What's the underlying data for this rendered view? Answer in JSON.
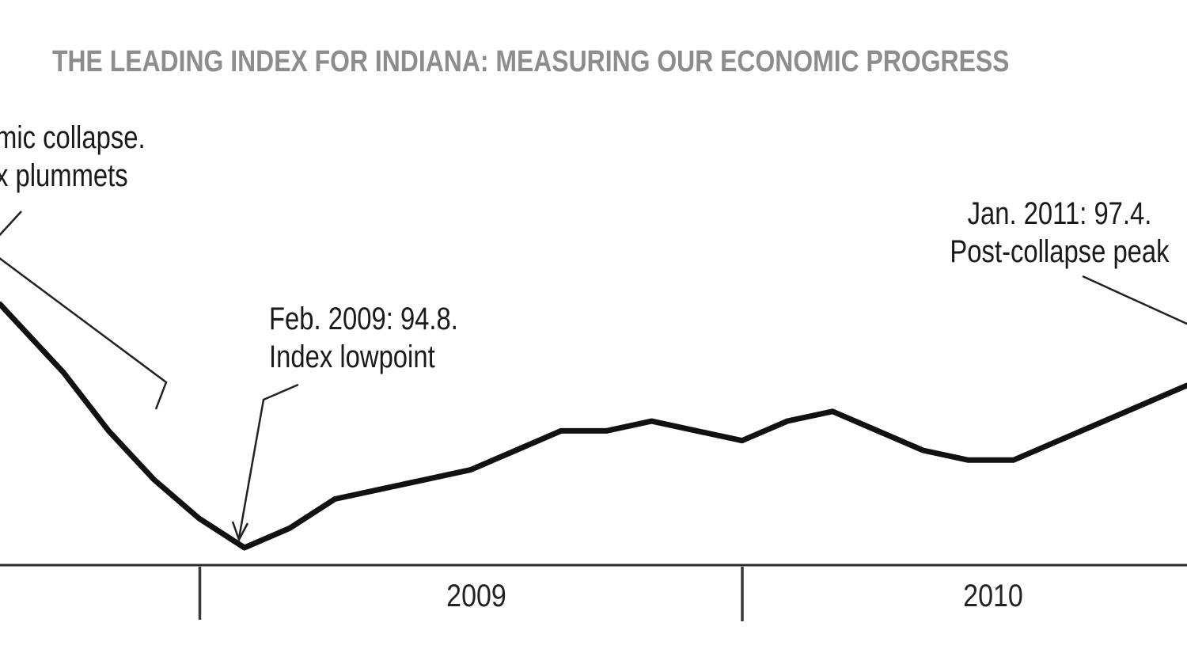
{
  "title": "THE LEADING INDEX FOR INDIANA: MEASURING OUR ECONOMIC PROGRESS",
  "annotations": {
    "collapse": {
      "line1": "mic collapse.",
      "line2": "x plummets"
    },
    "lowpoint": {
      "line1": "Feb. 2009: 94.8.",
      "line2": "Index lowpoint"
    },
    "peak": {
      "line1": "Jan. 2011: 97.4.",
      "line2": "Post-collapse peak"
    }
  },
  "axis": {
    "year_labels": [
      "2009",
      "2010"
    ]
  },
  "colors": {
    "background": "#ffffff",
    "index_line": "#111111",
    "leader_line": "#222222",
    "axis_line": "#2b2b2b",
    "tick": "#3a3a3a",
    "title_text": "#8d8d8d",
    "annotation_text": "#1a1a1a"
  },
  "chart_data": {
    "type": "line",
    "title": "THE LEADING INDEX FOR INDIANA: MEASURING OUR ECONOMIC PROGRESS",
    "x": [
      "Sep 2008",
      "Oct 2008",
      "Nov 2008",
      "Dec 2008",
      "Jan 2009",
      "Feb 2009",
      "Mar 2009",
      "Apr 2009",
      "May 2009",
      "Jun 2009",
      "Jul 2009",
      "Aug 2009",
      "Sep 2009",
      "Oct 2009",
      "Nov 2009",
      "Dec 2009",
      "Jan 2010",
      "Feb 2010",
      "Mar 2010",
      "Apr 2010",
      "May 2010",
      "Jun 2010",
      "Jul 2010",
      "Aug 2010",
      "Sep 2010",
      "Oct 2010"
    ],
    "series": [
      {
        "name": "Leading Index for Indiana",
        "values": [
          97.1,
          96.6,
          96.0,
          95.5,
          95.1,
          94.8,
          95.0,
          95.3,
          95.4,
          95.5,
          95.6,
          95.8,
          96.0,
          96.0,
          96.1,
          96.0,
          95.9,
          96.1,
          96.2,
          96.0,
          95.8,
          95.7,
          95.7,
          95.9,
          96.1,
          96.3
        ]
      }
    ],
    "annotated_points": [
      {
        "x": "Feb 2009",
        "value": 94.8,
        "label": "Feb. 2009: 94.8. Index lowpoint"
      },
      {
        "x": "Jan 2011",
        "value": 97.4,
        "label": "Jan. 2011: 97.4. Post-collapse peak",
        "off_frame_right": true
      }
    ],
    "x_tick_positions": [
      "Jan 2009",
      "Jan 2010"
    ],
    "x_tick_year_labels": [
      "2009",
      "2010"
    ],
    "ylim": [
      94.5,
      97.5
    ],
    "xlabel": "",
    "ylabel": "",
    "grid": false,
    "legend": false
  }
}
